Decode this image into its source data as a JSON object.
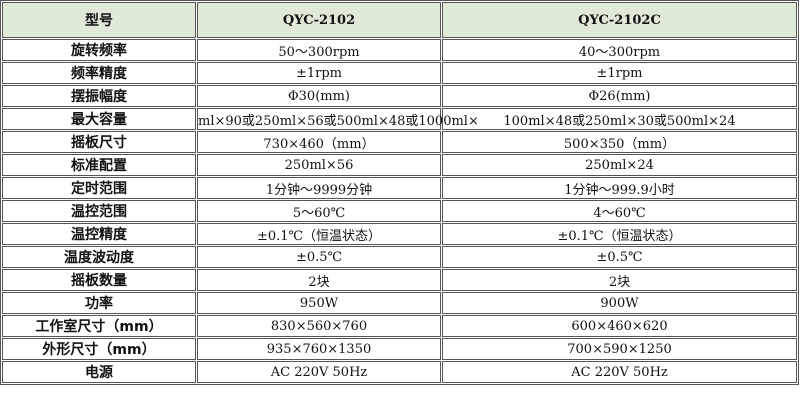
{
  "header": {
    "label": "型号",
    "models": [
      "QYC-2102",
      "QYC-2102C"
    ]
  },
  "header_bg": "#dfe9d8",
  "rows": [
    {
      "label": "旋转频率",
      "values": [
        "50～300rpm",
        "40～300rpm"
      ]
    },
    {
      "label": "频率精度",
      "values": [
        "±1rpm",
        "±1rpm"
      ]
    },
    {
      "label": "摆振幅度",
      "values": [
        "Φ30(mm)",
        "Φ26(mm)"
      ]
    },
    {
      "label": "最大容量",
      "values": [
        "ml×90或250ml×56或500ml×48或1000ml×",
        "100ml×48或250ml×30或500ml×24"
      ]
    },
    {
      "label": "摇板尺寸",
      "values": [
        "730×460（mm）",
        "500×350（mm）"
      ]
    },
    {
      "label": "标准配置",
      "values": [
        "250ml×56",
        "250ml×24"
      ]
    },
    {
      "label": "定时范围",
      "values": [
        "1分钟～9999分钟",
        "1分钟～999.9小时"
      ]
    },
    {
      "label": "温控范围",
      "values": [
        "5～60℃",
        "4～60℃"
      ]
    },
    {
      "label": "温控精度",
      "values": [
        "±0.1℃（恒温状态）",
        "±0.1℃（恒温状态）"
      ]
    },
    {
      "label": "温度波动度",
      "values": [
        "±0.5℃",
        "±0.5℃"
      ]
    },
    {
      "label": "摇板数量",
      "values": [
        "2块",
        "2块"
      ]
    },
    {
      "label": "功率",
      "values": [
        "950W",
        "900W"
      ]
    },
    {
      "label": "工作室尺寸（mm）",
      "values": [
        "830×560×760",
        "600×460×620"
      ]
    },
    {
      "label": "外形尺寸（mm）",
      "values": [
        "935×760×1350",
        "700×590×1250"
      ]
    },
    {
      "label": "电源",
      "values": [
        "AC 220V   50Hz",
        "AC 220V   50Hz"
      ]
    }
  ]
}
